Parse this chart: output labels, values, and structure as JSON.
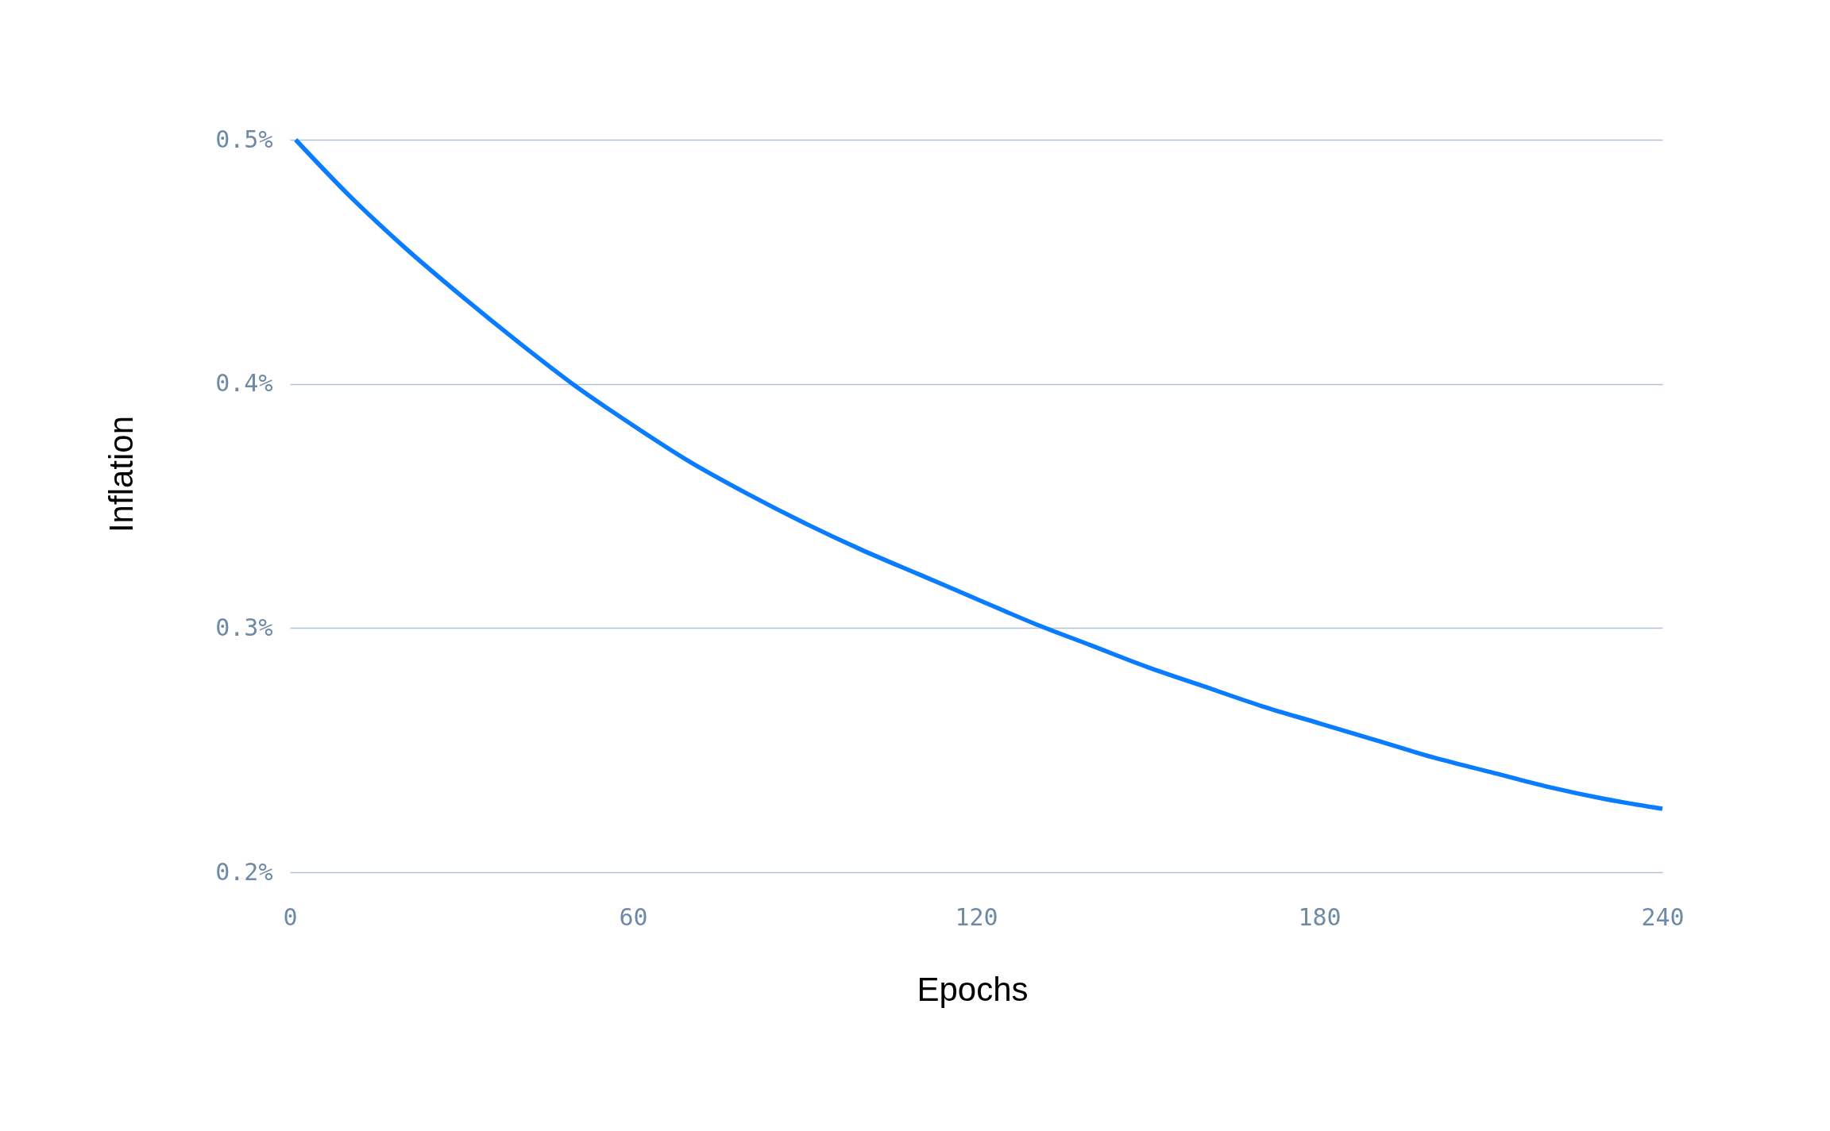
{
  "chart_data": {
    "type": "line",
    "xlabel": "Epochs",
    "ylabel": "Inflation",
    "x": [
      1,
      10,
      20,
      30,
      40,
      50,
      60,
      70,
      80,
      90,
      100,
      110,
      120,
      130,
      140,
      150,
      160,
      170,
      180,
      190,
      200,
      210,
      220,
      230,
      240
    ],
    "series": [
      {
        "color": "#0a7cff",
        "values": [
          0.5,
          0.478,
          0.456,
          0.436,
          0.417,
          0.399,
          0.383,
          0.368,
          0.355,
          0.343,
          0.332,
          0.322,
          0.312,
          0.302,
          0.293,
          0.284,
          0.276,
          0.268,
          0.261,
          0.254,
          0.247,
          0.241,
          0.235,
          0.23,
          0.226
        ]
      }
    ],
    "xlim": [
      0,
      240
    ],
    "xticks": [
      0,
      60,
      120,
      180,
      240
    ],
    "ylim": [
      0.2,
      0.5
    ],
    "yticks": [
      {
        "value": 0.2,
        "label": "0.2%"
      },
      {
        "value": 0.3,
        "label": "0.3%"
      },
      {
        "value": 0.4,
        "label": "0.4%"
      },
      {
        "value": 0.5,
        "label": "0.5%"
      }
    ],
    "grid": "y",
    "line_style": "solid"
  }
}
